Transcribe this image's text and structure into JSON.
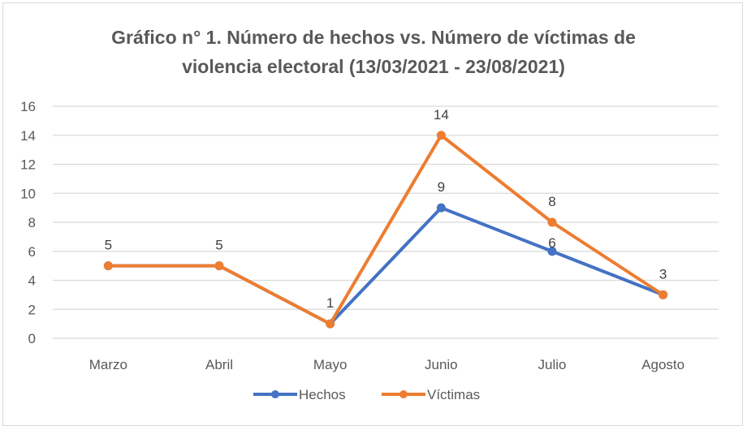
{
  "chart_data": {
    "type": "line",
    "title_line1": "Gráfico n° 1. Número de hechos vs. Número de víctimas de",
    "title_line2": "violencia electoral (13/03/2021 - 23/08/2021)",
    "title": "Gráfico n° 1. Número de hechos vs. Número de víctimas de violencia electoral (13/03/2021 - 23/08/2021)",
    "categories": [
      "Marzo",
      "Abril",
      "Mayo",
      "Junio",
      "Julio",
      "Agosto"
    ],
    "series": [
      {
        "name": "Hechos",
        "color": "#4472C4",
        "values": [
          5,
          5,
          1,
          9,
          6,
          3
        ]
      },
      {
        "name": "Víctimas",
        "color": "#ED7D31",
        "values": [
          5,
          5,
          1,
          14,
          8,
          3
        ]
      }
    ],
    "data_labels": {
      "Hechos": [
        "",
        "",
        "",
        "9",
        "6",
        ""
      ],
      "Víctimas": [
        "5",
        "5",
        "1",
        "14",
        "8",
        "3"
      ]
    },
    "yticks": [
      "0",
      "2",
      "4",
      "6",
      "8",
      "10",
      "12",
      "14",
      "16"
    ],
    "ylim": [
      0,
      16
    ],
    "xlabel": "",
    "ylabel": "",
    "grid": true,
    "legend_position": "bottom"
  }
}
